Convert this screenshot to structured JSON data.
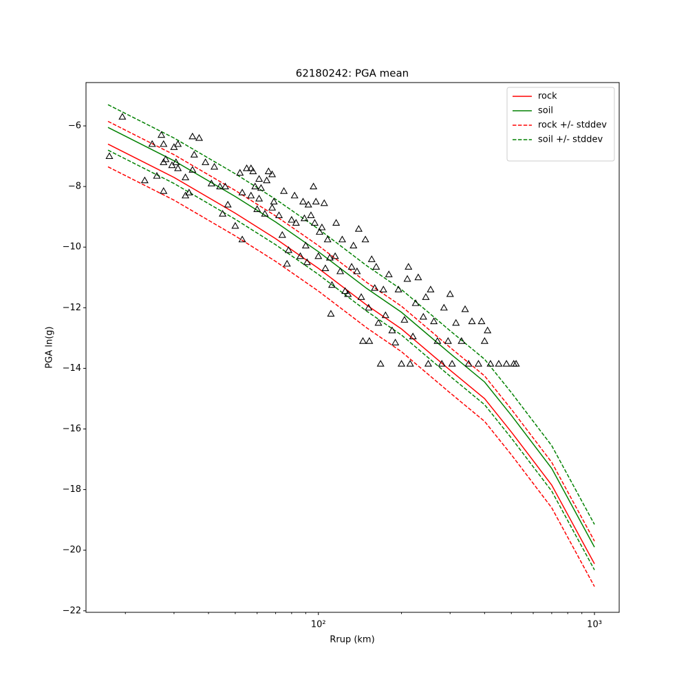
{
  "chart_data": {
    "type": "line",
    "title": "62180242: PGA mean",
    "xlabel": "Rrup (km)",
    "ylabel": "PGA ln(g)",
    "xscale": "log",
    "xlim": [
      14.4,
      1229
    ],
    "ylim": [
      -22.05,
      -4.57
    ],
    "xticks": [
      {
        "value": 100,
        "label": "10²"
      },
      {
        "value": 1000,
        "label": "10³"
      }
    ],
    "xminorticks": [
      20,
      30,
      40,
      50,
      60,
      70,
      80,
      90,
      200,
      300,
      400,
      500,
      600,
      700,
      800,
      900
    ],
    "yticks": [
      {
        "value": -22,
        "label": "−22"
      },
      {
        "value": -20,
        "label": "−20"
      },
      {
        "value": -18,
        "label": "−18"
      },
      {
        "value": -16,
        "label": "−16"
      },
      {
        "value": -14,
        "label": "−14"
      },
      {
        "value": -12,
        "label": "−12"
      },
      {
        "value": -10,
        "label": "−10"
      },
      {
        "value": -8,
        "label": "−8"
      },
      {
        "value": -6,
        "label": "−6"
      }
    ],
    "legend": "upper right",
    "x": [
      17.3,
      20,
      30,
      50,
      70,
      100,
      150,
      200,
      300,
      400,
      500,
      700,
      1000
    ],
    "series": [
      {
        "name": "rock",
        "color": "#ff0000",
        "linestyle": "solid",
        "values": [
          -6.6,
          -6.89,
          -7.7,
          -8.88,
          -9.72,
          -10.7,
          -11.92,
          -12.7,
          -14.06,
          -15.0,
          -16.1,
          -17.85,
          -20.45
        ]
      },
      {
        "name": "soil",
        "color": "#008000",
        "linestyle": "solid",
        "values": [
          -6.05,
          -6.34,
          -7.15,
          -8.33,
          -9.17,
          -10.15,
          -11.37,
          -12.15,
          -13.51,
          -14.45,
          -15.55,
          -17.3,
          -19.9
        ]
      },
      {
        "name": "rock +/- stddev",
        "color": "#ff0000",
        "linestyle": "dashed",
        "upper": [
          -5.85,
          -6.14,
          -6.95,
          -8.13,
          -8.97,
          -9.95,
          -11.17,
          -11.95,
          -13.31,
          -14.25,
          -15.35,
          -17.1,
          -19.7
        ],
        "lower": [
          -7.35,
          -7.64,
          -8.45,
          -9.63,
          -10.47,
          -11.45,
          -12.67,
          -13.45,
          -14.81,
          -15.75,
          -16.85,
          -18.6,
          -21.2
        ]
      },
      {
        "name": "soil +/- stddev",
        "color": "#008000",
        "linestyle": "dashed",
        "upper": [
          -5.3,
          -5.59,
          -6.4,
          -7.58,
          -8.42,
          -9.4,
          -10.62,
          -11.4,
          -12.76,
          -13.7,
          -14.8,
          -16.55,
          -19.15
        ],
        "lower": [
          -6.8,
          -7.09,
          -7.9,
          -9.08,
          -9.92,
          -10.9,
          -12.12,
          -12.9,
          -14.26,
          -15.2,
          -16.3,
          -18.05,
          -20.65
        ]
      }
    ],
    "scatter": {
      "color": "#000000",
      "marker": "triangle",
      "x": [
        19.5,
        17.5,
        23.5,
        25,
        26,
        27,
        27.5,
        27.5,
        28,
        27.5,
        29.5,
        30,
        30.5,
        31,
        31,
        33,
        33,
        34,
        35,
        35,
        37,
        35.5,
        39,
        41,
        42,
        44,
        45,
        46,
        47,
        50,
        52,
        53,
        53,
        55,
        57,
        57,
        58,
        59,
        60,
        61,
        61,
        62,
        64,
        65,
        66,
        68,
        68,
        69,
        72,
        74,
        75,
        77,
        78,
        80,
        82,
        83,
        86,
        88,
        89,
        90,
        91,
        92,
        94,
        96,
        97,
        98,
        100,
        101,
        103,
        105,
        106,
        108,
        110,
        111,
        112,
        115,
        116,
        120,
        122,
        125,
        128,
        132,
        134,
        138,
        140,
        143,
        145,
        148,
        152,
        153,
        156,
        160,
        162,
        165,
        168,
        172,
        175,
        180,
        185,
        190,
        195,
        200,
        205,
        210,
        212,
        215,
        220,
        225,
        230,
        240,
        245,
        250,
        255,
        262,
        270,
        280,
        285,
        295,
        300,
        305,
        315,
        330,
        340,
        350,
        360,
        380,
        390,
        400,
        410,
        420,
        450,
        480,
        510,
        520
      ],
      "values": [
        -5.7,
        -7.0,
        -7.8,
        -6.6,
        -7.65,
        -6.3,
        -6.6,
        -7.2,
        -7.1,
        -8.15,
        -7.3,
        -6.7,
        -7.2,
        -6.6,
        -7.4,
        -7.7,
        -8.3,
        -8.2,
        -6.35,
        -7.45,
        -6.4,
        -6.95,
        -7.2,
        -7.9,
        -7.35,
        -8.0,
        -8.9,
        -8.0,
        -8.6,
        -9.3,
        -7.55,
        -8.2,
        -9.75,
        -7.4,
        -7.4,
        -8.3,
        -7.5,
        -8.0,
        -8.75,
        -8.4,
        -7.75,
        -8.05,
        -8.9,
        -7.8,
        -7.5,
        -7.6,
        -8.7,
        -8.5,
        -8.95,
        -9.6,
        -8.15,
        -10.55,
        -10.1,
        -9.1,
        -8.3,
        -9.2,
        -10.3,
        -8.5,
        -9.05,
        -9.95,
        -10.5,
        -8.6,
        -8.95,
        -8.0,
        -9.2,
        -8.5,
        -10.3,
        -9.5,
        -9.35,
        -8.55,
        -10.7,
        -9.75,
        -10.35,
        -12.2,
        -11.25,
        -10.3,
        -9.2,
        -10.8,
        -9.75,
        -11.45,
        -11.55,
        -10.65,
        -9.95,
        -10.8,
        -9.4,
        -11.65,
        -13.1,
        -9.75,
        -12.0,
        -13.1,
        -10.4,
        -11.35,
        -10.65,
        -12.5,
        -13.85,
        -11.4,
        -12.25,
        -10.9,
        -12.75,
        -13.15,
        -11.4,
        -13.85,
        -12.4,
        -11.05,
        -10.65,
        -13.85,
        -12.95,
        -11.85,
        -11.0,
        -12.3,
        -11.65,
        -13.85,
        -11.4,
        -12.45,
        -13.1,
        -13.85,
        -12.0,
        -13.1,
        -11.55,
        -13.85,
        -12.5,
        -13.1,
        -12.05,
        -13.85,
        -12.45,
        -13.85,
        -12.45,
        -13.1,
        -12.75,
        -13.85,
        -13.85,
        -13.85,
        -13.85,
        -13.85
      ]
    }
  }
}
